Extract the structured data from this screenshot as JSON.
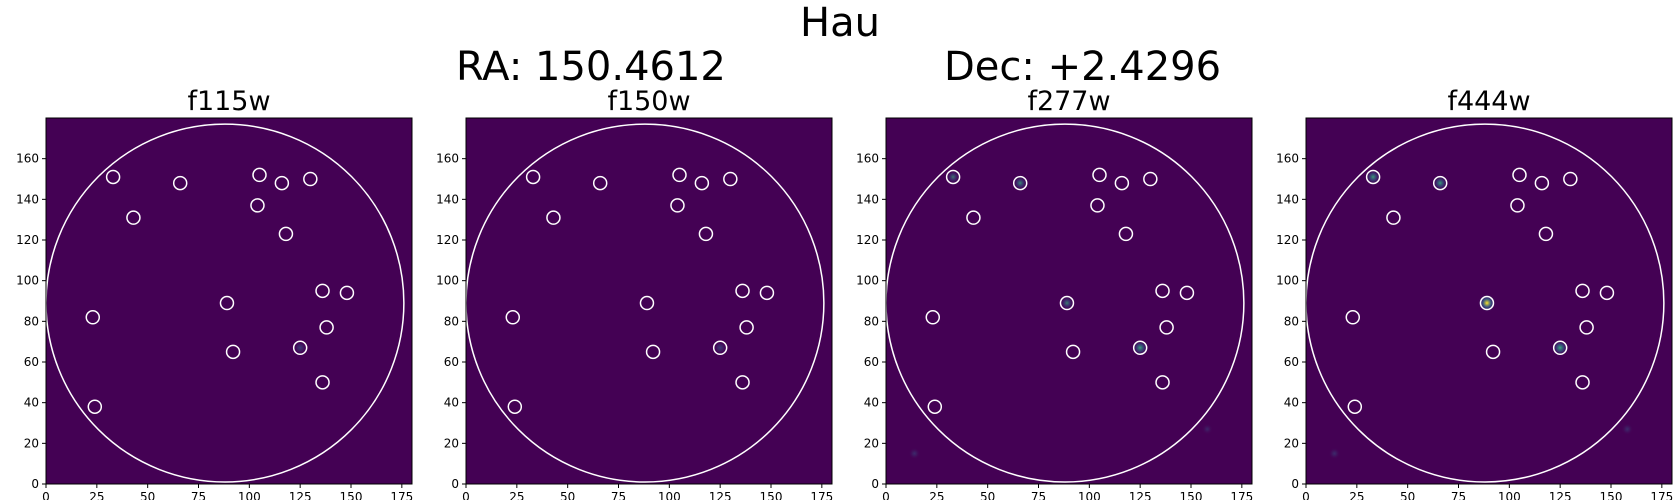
{
  "figure": {
    "title": "Hau",
    "ra_text": "RA: 150.4612",
    "dec_text": "Dec: +2.4296",
    "colors": {
      "background": "#440154",
      "marker": "#ffffff",
      "glow_mid": "#31688e",
      "glow_bright": "#35b779",
      "peak": "#fde725"
    }
  },
  "chart_data": [
    {
      "type": "heatmap",
      "title": "f115w",
      "xlim": [
        0,
        180
      ],
      "ylim": [
        0,
        180
      ],
      "xticks": [
        0,
        25,
        50,
        75,
        100,
        125,
        150,
        175
      ],
      "yticks": [
        0,
        20,
        40,
        60,
        80,
        100,
        120,
        140,
        160
      ],
      "aperture": {
        "cx": 88,
        "cy": 89,
        "r": 88
      },
      "markers": [
        [
          33,
          151
        ],
        [
          66,
          148
        ],
        [
          105,
          152
        ],
        [
          116,
          148
        ],
        [
          130,
          150
        ],
        [
          43,
          131
        ],
        [
          104,
          137
        ],
        [
          118,
          123
        ],
        [
          23,
          82
        ],
        [
          89,
          89
        ],
        [
          136,
          95
        ],
        [
          148,
          94
        ],
        [
          138,
          77
        ],
        [
          92,
          65
        ],
        [
          125,
          67
        ],
        [
          136,
          50
        ],
        [
          24,
          38
        ]
      ],
      "sources": [
        {
          "x": 125,
          "y": 67,
          "level": 0.35
        }
      ]
    },
    {
      "type": "heatmap",
      "title": "f150w",
      "xlim": [
        0,
        180
      ],
      "ylim": [
        0,
        180
      ],
      "xticks": [
        0,
        25,
        50,
        75,
        100,
        125,
        150,
        175
      ],
      "yticks": [
        0,
        20,
        40,
        60,
        80,
        100,
        120,
        140,
        160
      ],
      "aperture": {
        "cx": 88,
        "cy": 89,
        "r": 88
      },
      "markers": [
        [
          33,
          151
        ],
        [
          66,
          148
        ],
        [
          105,
          152
        ],
        [
          116,
          148
        ],
        [
          130,
          150
        ],
        [
          43,
          131
        ],
        [
          104,
          137
        ],
        [
          118,
          123
        ],
        [
          23,
          82
        ],
        [
          89,
          89
        ],
        [
          136,
          95
        ],
        [
          148,
          94
        ],
        [
          138,
          77
        ],
        [
          92,
          65
        ],
        [
          125,
          67
        ],
        [
          136,
          50
        ],
        [
          24,
          38
        ]
      ],
      "sources": [
        {
          "x": 125,
          "y": 67,
          "level": 0.35
        }
      ]
    },
    {
      "type": "heatmap",
      "title": "f277w",
      "xlim": [
        0,
        180
      ],
      "ylim": [
        0,
        180
      ],
      "xticks": [
        0,
        25,
        50,
        75,
        100,
        125,
        150,
        175
      ],
      "yticks": [
        0,
        20,
        40,
        60,
        80,
        100,
        120,
        140,
        160
      ],
      "aperture": {
        "cx": 88,
        "cy": 89,
        "r": 88
      },
      "markers": [
        [
          33,
          151
        ],
        [
          66,
          148
        ],
        [
          105,
          152
        ],
        [
          116,
          148
        ],
        [
          130,
          150
        ],
        [
          43,
          131
        ],
        [
          104,
          137
        ],
        [
          118,
          123
        ],
        [
          23,
          82
        ],
        [
          89,
          89
        ],
        [
          136,
          95
        ],
        [
          148,
          94
        ],
        [
          138,
          77
        ],
        [
          92,
          65
        ],
        [
          125,
          67
        ],
        [
          136,
          50
        ],
        [
          24,
          38
        ]
      ],
      "sources": [
        {
          "x": 33,
          "y": 151,
          "level": 0.45
        },
        {
          "x": 66,
          "y": 148,
          "level": 0.55
        },
        {
          "x": 89,
          "y": 89,
          "level": 0.5
        },
        {
          "x": 125,
          "y": 67,
          "level": 0.7
        },
        {
          "x": 14,
          "y": 15,
          "level": 0.2
        },
        {
          "x": 158,
          "y": 27,
          "level": 0.15
        }
      ]
    },
    {
      "type": "heatmap",
      "title": "f444w",
      "xlim": [
        0,
        180
      ],
      "ylim": [
        0,
        180
      ],
      "xticks": [
        0,
        25,
        50,
        75,
        100,
        125,
        150,
        175
      ],
      "yticks": [
        0,
        20,
        40,
        60,
        80,
        100,
        120,
        140,
        160
      ],
      "aperture": {
        "cx": 88,
        "cy": 89,
        "r": 88
      },
      "markers": [
        [
          33,
          151
        ],
        [
          66,
          148
        ],
        [
          105,
          152
        ],
        [
          116,
          148
        ],
        [
          130,
          150
        ],
        [
          43,
          131
        ],
        [
          104,
          137
        ],
        [
          118,
          123
        ],
        [
          23,
          82
        ],
        [
          89,
          89
        ],
        [
          136,
          95
        ],
        [
          148,
          94
        ],
        [
          138,
          77
        ],
        [
          92,
          65
        ],
        [
          125,
          67
        ],
        [
          136,
          50
        ],
        [
          24,
          38
        ]
      ],
      "sources": [
        {
          "x": 33,
          "y": 151,
          "level": 0.65
        },
        {
          "x": 66,
          "y": 148,
          "level": 0.65
        },
        {
          "x": 89,
          "y": 89,
          "level": 1.0
        },
        {
          "x": 125,
          "y": 67,
          "level": 0.75
        },
        {
          "x": 14,
          "y": 15,
          "level": 0.2
        },
        {
          "x": 158,
          "y": 27,
          "level": 0.2
        }
      ]
    }
  ]
}
